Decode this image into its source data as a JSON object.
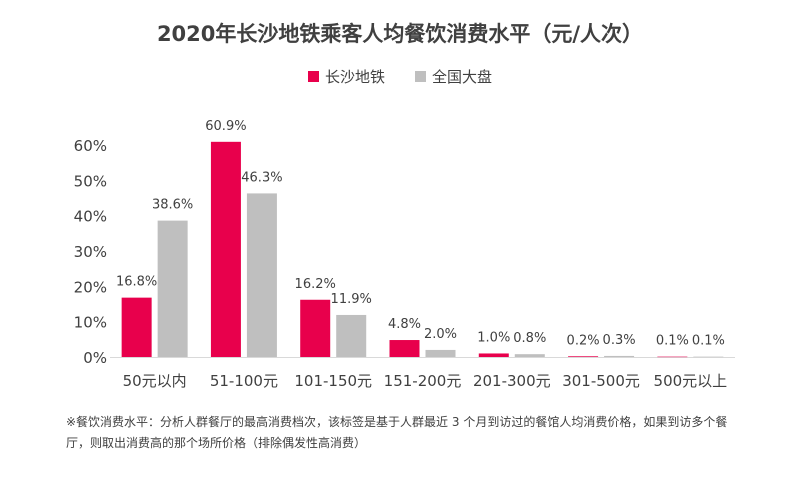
{
  "chart_data": {
    "type": "bar",
    "title": "2020年长沙地铁乘客人均餐饮消费水平（元/人次）",
    "categories": [
      "50元以内",
      "51-100元",
      "101-150元",
      "151-200元",
      "201-300元",
      "301-500元",
      "500元以上"
    ],
    "series": [
      {
        "name": "长沙地铁",
        "color": "#E8004C",
        "values": [
          16.8,
          60.9,
          16.2,
          4.8,
          1.0,
          0.2,
          0.1
        ],
        "labels": [
          "16.8%",
          "60.9%",
          "16.2%",
          "4.8%",
          "1.0%",
          "0.2%",
          "0.1%"
        ]
      },
      {
        "name": "全国大盘",
        "color": "#BFBFBF",
        "values": [
          38.6,
          46.3,
          11.9,
          2.0,
          0.8,
          0.3,
          0.1
        ],
        "labels": [
          "38.6%",
          "46.3%",
          "11.9%",
          "2.0%",
          "0.8%",
          "0.3%",
          "0.1%"
        ]
      }
    ],
    "ylim": [
      0,
      60
    ],
    "yticks": [
      0,
      10,
      20,
      30,
      40,
      50,
      60
    ],
    "ytick_labels": [
      "0%",
      "10%",
      "20%",
      "30%",
      "40%",
      "50%",
      "60%"
    ],
    "grid": false,
    "legend_position": "top-center"
  },
  "footnote": "※餐饮消费水平：分析人群餐厅的最高消费档次，该标签是基于人群最近 3 个月到访过的餐馆人均消费价格，如果到访多个餐厅，则取出消费高的那个场所价格（排除偶发性高消费）"
}
